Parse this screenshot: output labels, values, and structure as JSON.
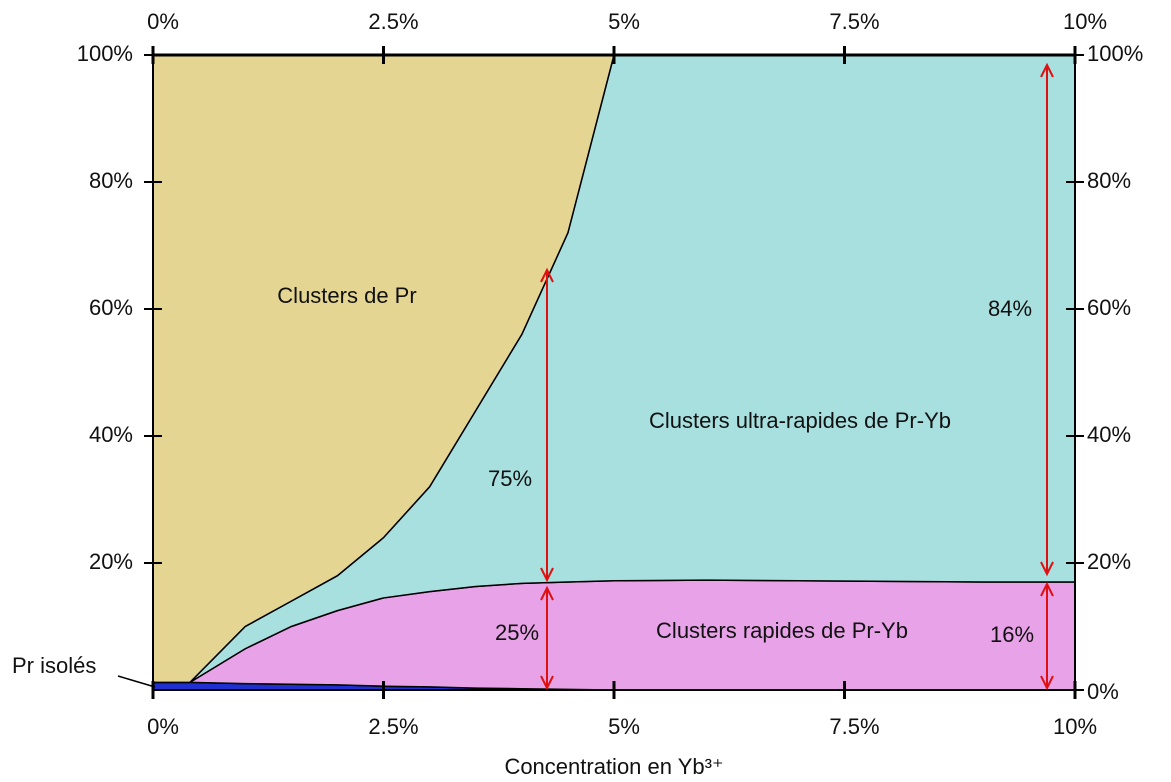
{
  "chart_data": {
    "type": "stacked_area",
    "xlabel": "Concentration en Yb³⁺",
    "x": [
      0,
      0.4,
      1,
      1.5,
      2,
      2.5,
      3,
      3.5,
      4,
      4.5,
      5,
      6,
      7,
      8,
      9,
      10
    ],
    "series": [
      {
        "name": "Pr isolés",
        "color": "#1f2fd0",
        "values": [
          1.2,
          1.2,
          1.0,
          0.9,
          0.8,
          0.6,
          0.5,
          0.3,
          0.2,
          0.1,
          0,
          0,
          0,
          0,
          0,
          0
        ]
      },
      {
        "name": "Clusters rapides de Pr-Yb",
        "color": "#e8a3e8",
        "values": [
          0,
          0,
          5.5,
          9.1,
          11.7,
          13.9,
          15,
          16,
          16.6,
          16.9,
          17.2,
          17.3,
          17.2,
          17.1,
          17,
          17
        ]
      },
      {
        "name": "Clusters ultra-rapides de Pr-Yb",
        "color": "#a8dfdf",
        "values": [
          0,
          0,
          3.5,
          4,
          5.5,
          9.5,
          16.5,
          27.7,
          39.2,
          55,
          82.8,
          82.7,
          82.8,
          82.9,
          83,
          83
        ]
      },
      {
        "name": "Clusters de Pr",
        "color": "#e5d592",
        "values": [
          98.8,
          98.8,
          90,
          86,
          82,
          76,
          68,
          56,
          44,
          28,
          0,
          0,
          0,
          0,
          0,
          0
        ]
      }
    ],
    "annotations": [
      "75%",
      "25%",
      "84%",
      "16%"
    ],
    "xlim": [
      0,
      10
    ],
    "xticks": [
      {
        "value": 0,
        "label": "0%"
      },
      {
        "value": 2.5,
        "label": "2.5%"
      },
      {
        "value": 5,
        "label": "5%"
      },
      {
        "value": 7.5,
        "label": "7.5%"
      },
      {
        "value": 10,
        "label": "10%"
      }
    ],
    "ylim": [
      0,
      100
    ],
    "yticks": [
      {
        "value": 20,
        "label": "20%"
      },
      {
        "value": 40,
        "label": "40%"
      },
      {
        "value": 60,
        "label": "60%"
      },
      {
        "value": 80,
        "label": "80%"
      },
      {
        "value": 100,
        "label": "100%"
      }
    ],
    "y2lim": [
      0,
      100
    ],
    "y2ticks": [
      {
        "value": 0,
        "label": "0%"
      },
      {
        "value": 20,
        "label": "20%"
      },
      {
        "value": 40,
        "label": "40%"
      },
      {
        "value": 60,
        "label": "60%"
      },
      {
        "value": 80,
        "label": "80%"
      },
      {
        "value": 100,
        "label": "100%"
      }
    ]
  }
}
